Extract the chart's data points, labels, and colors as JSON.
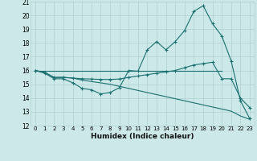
{
  "xlabel": "Humidex (Indice chaleur)",
  "background_color": "#cce8e8",
  "grid_color": "#b0d0d0",
  "line_color": "#1a7070",
  "xlim": [
    -0.5,
    23.5
  ],
  "ylim": [
    12,
    21
  ],
  "xticks": [
    0,
    1,
    2,
    3,
    4,
    5,
    6,
    7,
    8,
    9,
    10,
    11,
    12,
    13,
    14,
    15,
    16,
    17,
    18,
    19,
    20,
    21,
    22,
    23
  ],
  "yticks": [
    12,
    13,
    14,
    15,
    16,
    17,
    18,
    19,
    20,
    21
  ],
  "series1_x": [
    0,
    1,
    2,
    3,
    4,
    5,
    6,
    7,
    8,
    9,
    10,
    11,
    12,
    13,
    14,
    15,
    16,
    17,
    18,
    19,
    20,
    21,
    22,
    23
  ],
  "series1_y": [
    16.0,
    15.8,
    15.4,
    15.4,
    15.1,
    14.7,
    14.6,
    14.3,
    14.4,
    14.75,
    16.0,
    15.95,
    17.5,
    18.1,
    17.5,
    18.1,
    18.9,
    20.3,
    20.7,
    19.4,
    18.5,
    16.7,
    13.8,
    12.5
  ],
  "series2_x": [
    0,
    1,
    2,
    3,
    4,
    5,
    6,
    7,
    8,
    9,
    10,
    11,
    12,
    13,
    14,
    15,
    16,
    17,
    18,
    19,
    20,
    21,
    22,
    23
  ],
  "series2_y": [
    16.0,
    15.85,
    15.5,
    15.5,
    15.45,
    15.4,
    15.38,
    15.35,
    15.35,
    15.38,
    15.5,
    15.6,
    15.7,
    15.8,
    15.9,
    16.0,
    16.2,
    16.4,
    16.5,
    16.6,
    15.4,
    15.4,
    14.0,
    13.3
  ],
  "series3_x": [
    0,
    20
  ],
  "series3_y": [
    16.0,
    16.0
  ],
  "series4_x": [
    0,
    1,
    2,
    3,
    4,
    5,
    6,
    7,
    8,
    9,
    10,
    11,
    12,
    13,
    14,
    15,
    16,
    17,
    18,
    19,
    20,
    21,
    22,
    23
  ],
  "series4_y": [
    16.0,
    15.85,
    15.5,
    15.5,
    15.45,
    15.3,
    15.2,
    15.1,
    15.0,
    14.85,
    14.7,
    14.55,
    14.4,
    14.25,
    14.1,
    13.95,
    13.8,
    13.65,
    13.5,
    13.35,
    13.2,
    13.05,
    12.7,
    12.45
  ]
}
